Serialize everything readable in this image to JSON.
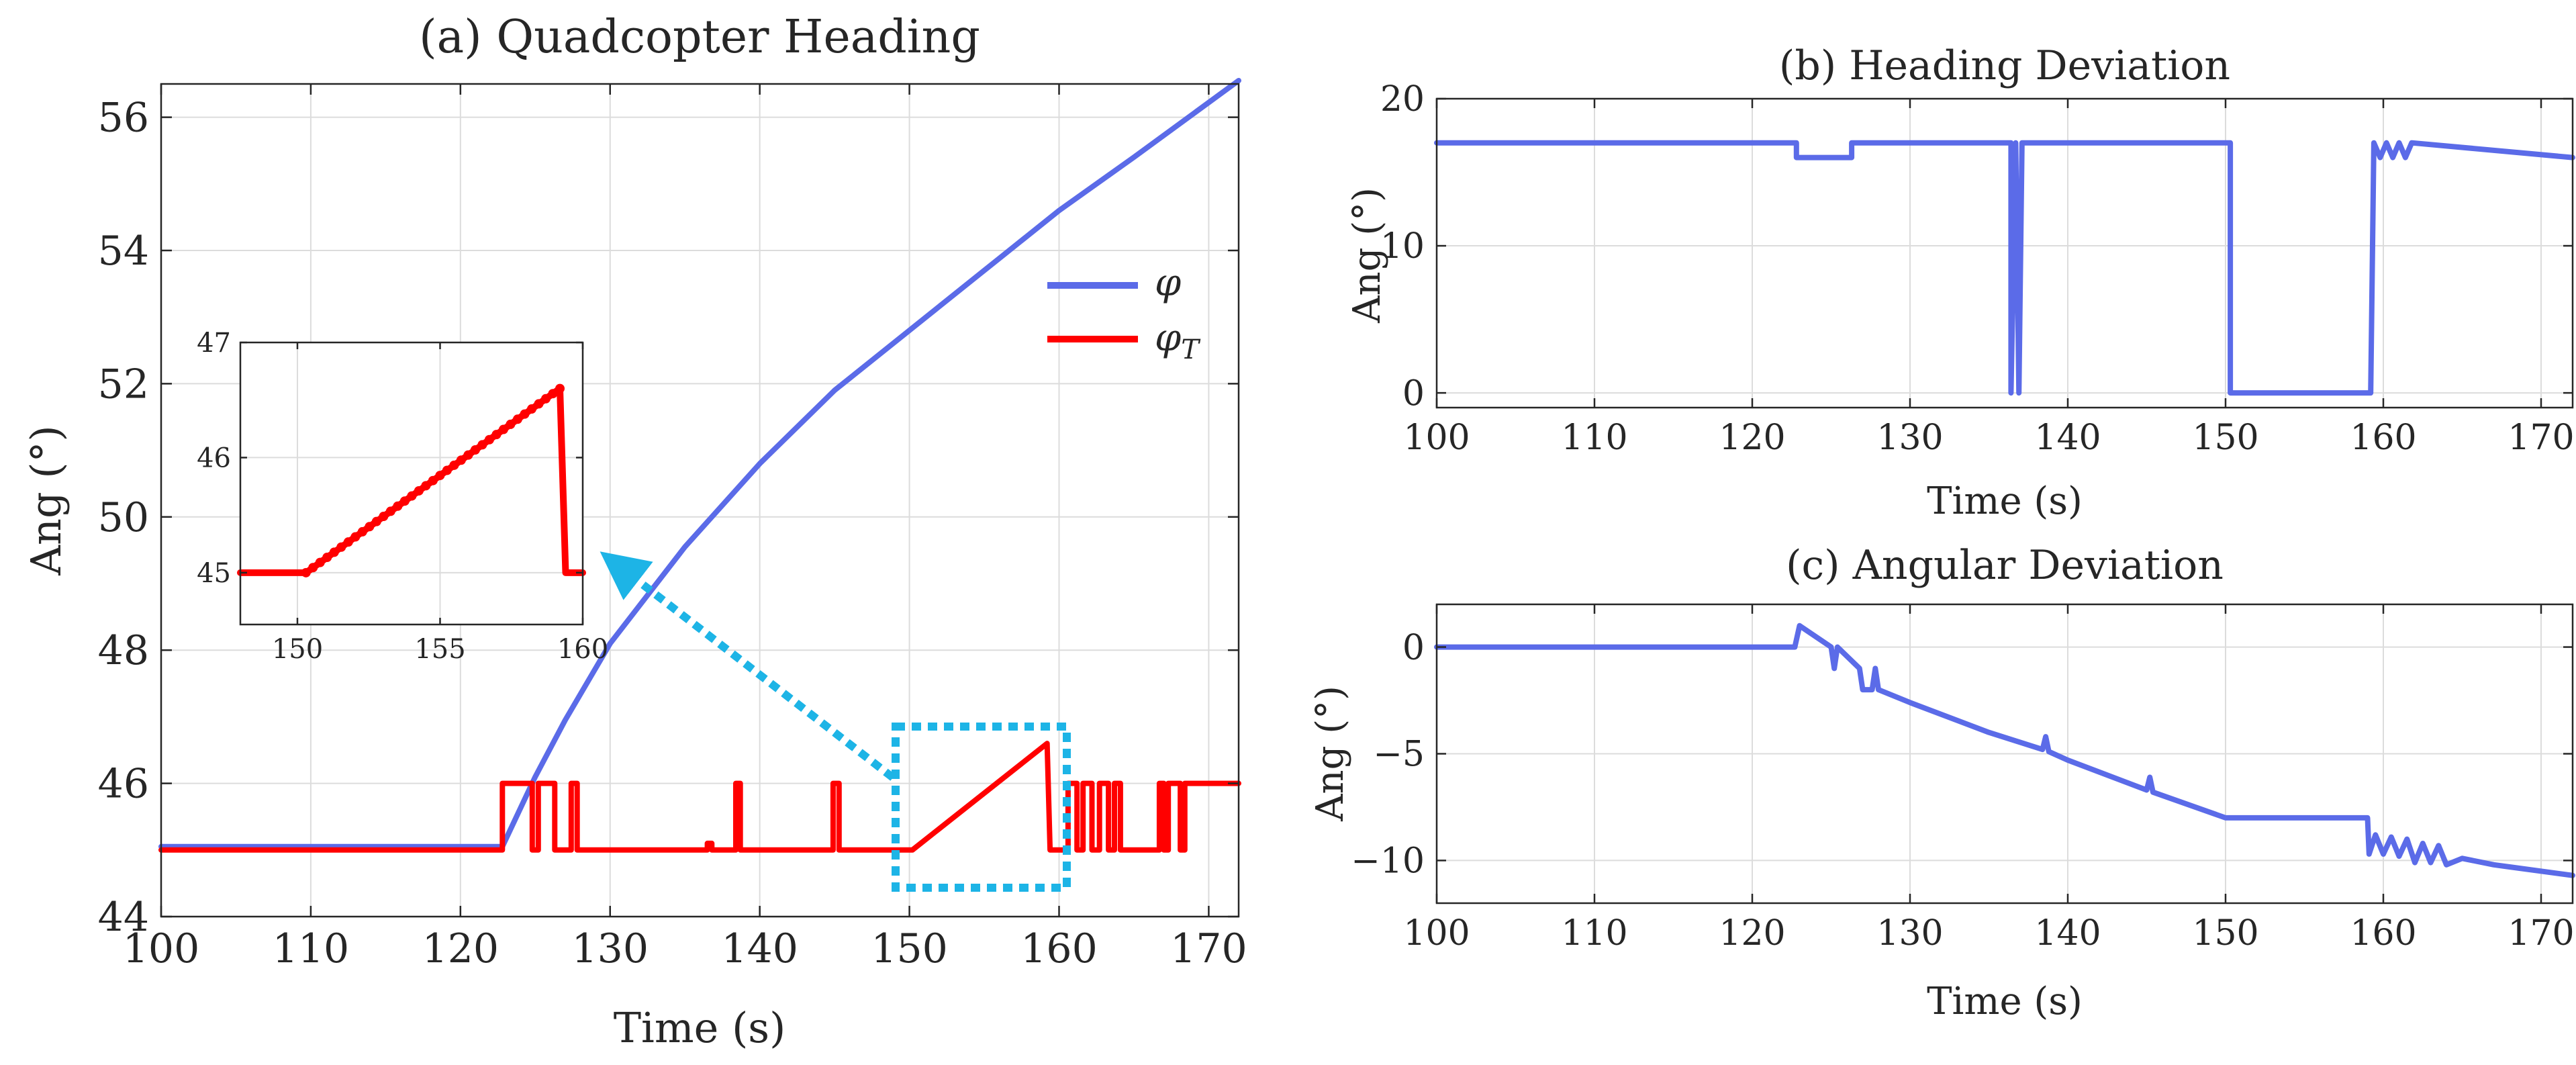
{
  "colors": {
    "phi": "#5B6BE8",
    "phiT": "#FF0000",
    "callout": "#1DB4E6",
    "axis": "#262626",
    "grid": "#dcdcdc"
  },
  "chart_data": [
    {
      "id": "a",
      "type": "line",
      "title": "(a) Quadcopter Heading",
      "xlabel": "Time (s)",
      "ylabel": "Ang (°)",
      "xlim": [
        100,
        172
      ],
      "ylim": [
        44,
        56.5
      ],
      "xticks": [
        100,
        110,
        120,
        130,
        140,
        150,
        160,
        170
      ],
      "yticks": [
        44,
        46,
        48,
        50,
        52,
        54,
        56
      ],
      "grid": true,
      "legend_position": "top-right",
      "series": [
        {
          "name": "φ",
          "color": "#5B6BE8",
          "points": [
            [
              100,
              45.05
            ],
            [
              122.8,
              45.05
            ],
            [
              125,
              46.1
            ],
            [
              127,
              46.95
            ],
            [
              130,
              48.1
            ],
            [
              135,
              49.55
            ],
            [
              140,
              50.8
            ],
            [
              145,
              51.9
            ],
            [
              150,
              52.8
            ],
            [
              155,
              53.7
            ],
            [
              160,
              54.6
            ],
            [
              165,
              55.4
            ],
            [
              172,
              56.55
            ]
          ]
        },
        {
          "name": "φ_T",
          "color": "#FF0000",
          "points": [
            [
              100,
              45
            ],
            [
              122.8,
              45
            ],
            [
              122.8,
              46
            ],
            [
              124.8,
              46
            ],
            [
              124.8,
              45
            ],
            [
              125.2,
              45
            ],
            [
              125.2,
              46
            ],
            [
              126.3,
              46
            ],
            [
              126.3,
              45
            ],
            [
              127.4,
              45
            ],
            [
              127.4,
              46
            ],
            [
              127.8,
              46
            ],
            [
              127.8,
              45
            ],
            [
              136.5,
              45
            ],
            [
              136.5,
              45.1
            ],
            [
              136.8,
              45.1
            ],
            [
              136.8,
              45
            ],
            [
              138.4,
              45
            ],
            [
              138.4,
              46
            ],
            [
              138.7,
              46
            ],
            [
              138.7,
              45
            ],
            [
              144.9,
              45
            ],
            [
              144.9,
              46
            ],
            [
              145.3,
              46
            ],
            [
              145.3,
              45
            ],
            [
              150.2,
              45
            ],
            [
              159.2,
              46.6
            ],
            [
              159.4,
              45
            ],
            [
              160.6,
              45
            ],
            [
              160.6,
              46
            ],
            [
              161.2,
              46
            ],
            [
              161.2,
              45
            ],
            [
              161.6,
              45
            ],
            [
              161.6,
              46
            ],
            [
              162.2,
              46
            ],
            [
              162.2,
              45
            ],
            [
              162.7,
              45
            ],
            [
              162.7,
              46
            ],
            [
              163.3,
              46
            ],
            [
              163.3,
              45
            ],
            [
              163.7,
              45
            ],
            [
              163.7,
              46
            ],
            [
              164.1,
              46
            ],
            [
              164.1,
              45
            ],
            [
              166.7,
              45
            ],
            [
              166.7,
              46
            ],
            [
              167.0,
              46
            ],
            [
              167.0,
              45
            ],
            [
              167.3,
              45
            ],
            [
              167.3,
              46
            ],
            [
              168.1,
              46
            ],
            [
              168.1,
              45
            ],
            [
              168.4,
              45
            ],
            [
              168.4,
              46
            ],
            [
              172,
              46
            ]
          ]
        }
      ],
      "inset": {
        "xlim": [
          148,
          160
        ],
        "ylim": [
          44.55,
          47
        ],
        "xticks": [
          150,
          155,
          160
        ],
        "yticks": [
          45,
          46,
          47
        ],
        "points": [
          [
            148,
            45
          ],
          [
            150.3,
            45
          ],
          [
            159.2,
            46.6
          ],
          [
            159.4,
            45
          ],
          [
            160,
            45
          ]
        ]
      }
    },
    {
      "id": "b",
      "type": "line",
      "title": "(b) Heading Deviation",
      "xlabel": "Time (s)",
      "ylabel": "Ang (°)",
      "xlim": [
        100,
        172
      ],
      "ylim": [
        -1,
        20
      ],
      "xticks": [
        100,
        110,
        120,
        130,
        140,
        150,
        160,
        170
      ],
      "yticks": [
        0,
        10,
        20
      ],
      "grid": true,
      "series": [
        {
          "name": "heading-deviation",
          "color": "#5B6BE8",
          "points": [
            [
              100,
              17
            ],
            [
              122.8,
              17
            ],
            [
              122.8,
              16
            ],
            [
              126.3,
              16
            ],
            [
              126.3,
              17
            ],
            [
              136.4,
              17
            ],
            [
              136.4,
              0
            ],
            [
              136.7,
              17
            ],
            [
              136.9,
              0
            ],
            [
              137.1,
              17
            ],
            [
              150.3,
              17
            ],
            [
              150.3,
              0
            ],
            [
              159.2,
              0
            ],
            [
              159.4,
              17
            ],
            [
              159.8,
              16
            ],
            [
              160.2,
              17
            ],
            [
              160.6,
              16
            ],
            [
              161.0,
              17
            ],
            [
              161.4,
              16
            ],
            [
              161.8,
              17
            ],
            [
              172,
              16
            ]
          ]
        }
      ]
    },
    {
      "id": "c",
      "type": "line",
      "title": "(c) Angular Deviation",
      "xlabel": "Time (s)",
      "ylabel": "Ang (°)",
      "xlim": [
        100,
        172
      ],
      "ylim": [
        -12,
        2
      ],
      "xticks": [
        100,
        110,
        120,
        130,
        140,
        150,
        160,
        170
      ],
      "yticks": [
        -10,
        -5,
        0
      ],
      "grid": true,
      "series": [
        {
          "name": "angular-deviation",
          "color": "#5B6BE8",
          "points": [
            [
              100,
              0
            ],
            [
              122.7,
              0
            ],
            [
              123,
              1
            ],
            [
              125,
              0
            ],
            [
              125.2,
              -1
            ],
            [
              125.4,
              0
            ],
            [
              126.8,
              -1
            ],
            [
              127,
              -2
            ],
            [
              127.6,
              -2
            ],
            [
              127.8,
              -1
            ],
            [
              128,
              -2
            ],
            [
              130,
              -2.6
            ],
            [
              135,
              -4
            ],
            [
              138.4,
              -4.8
            ],
            [
              138.6,
              -4.2
            ],
            [
              138.8,
              -4.9
            ],
            [
              140,
              -5.3
            ],
            [
              145,
              -6.7
            ],
            [
              145.2,
              -6.1
            ],
            [
              145.4,
              -6.8
            ],
            [
              150,
              -8
            ],
            [
              159,
              -8
            ],
            [
              159.1,
              -9.7
            ],
            [
              159.5,
              -8.8
            ],
            [
              160,
              -9.7
            ],
            [
              160.5,
              -8.9
            ],
            [
              161,
              -9.8
            ],
            [
              161.5,
              -9
            ],
            [
              162,
              -10.1
            ],
            [
              162.5,
              -9.2
            ],
            [
              163,
              -10.1
            ],
            [
              163.5,
              -9.3
            ],
            [
              164,
              -10.2
            ],
            [
              165,
              -9.9
            ],
            [
              167,
              -10.2
            ],
            [
              168,
              -10.3
            ],
            [
              172,
              -10.7
            ]
          ]
        }
      ]
    }
  ]
}
